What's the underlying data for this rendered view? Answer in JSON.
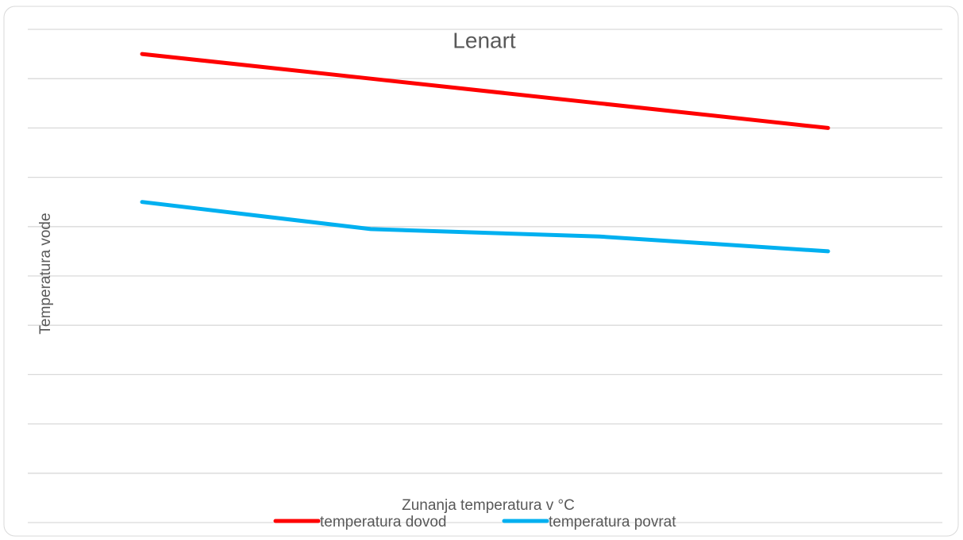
{
  "chart_data": {
    "type": "line",
    "title": "Lenart",
    "x_label": "Zunanja temperatura v °C",
    "y_label": "Temperatura vode",
    "categories": [
      null,
      null,
      null,
      null
    ],
    "series": [
      {
        "name": "temperatura dovod",
        "color": "#ff0000",
        "values": [
          95,
          90,
          85,
          80
        ]
      },
      {
        "name": "temperatura povrat",
        "color": "#00b0f0",
        "values": [
          65,
          59.5,
          58,
          55
        ]
      }
    ],
    "ylim": [
      0,
      100
    ],
    "yticks": [
      0,
      10,
      20,
      30,
      40,
      50,
      60,
      70,
      80,
      90,
      100
    ],
    "grid": true,
    "legend": "bottom"
  }
}
